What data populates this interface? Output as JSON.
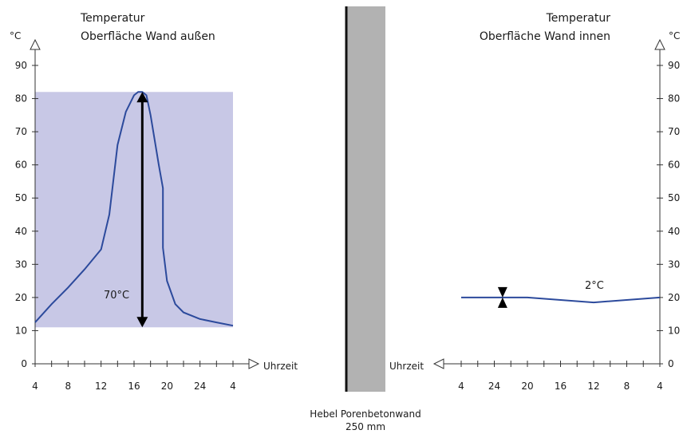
{
  "colors": {
    "range_fill": "#c8c8e6",
    "curve": "#2c4a9c",
    "axis": "#333333",
    "wall": "#b2b2b2",
    "wall_edge": "#111111",
    "marker": "#000000"
  },
  "wall": {
    "label_line1": "Hebel Porenbetonwand",
    "label_line2": "250 mm"
  },
  "chart_data": [
    {
      "type": "line",
      "title_line1": "Temperatur",
      "title_line2": "Oberfläche Wand außen",
      "y_unit": "°C",
      "xlabel": "Uhrzeit",
      "ylim": [
        0,
        90
      ],
      "yticks": [
        0,
        10,
        20,
        30,
        40,
        50,
        60,
        70,
        80,
        90
      ],
      "xtick_labels": [
        "4",
        "8",
        "12",
        "16",
        "20",
        "24",
        "4"
      ],
      "x_range_hours": [
        4,
        28
      ],
      "series": [
        {
          "x": [
            4,
            6,
            8,
            10,
            12,
            13,
            14,
            15,
            16,
            16.5,
            17,
            17.5,
            18,
            19,
            19.5,
            19.5,
            20,
            21,
            22,
            24,
            26,
            28
          ],
          "y": [
            12.5,
            18,
            23,
            28.5,
            34.5,
            45,
            66,
            76,
            81,
            82,
            82,
            81,
            75,
            60,
            53,
            35,
            25,
            18,
            15.5,
            13.5,
            12.5,
            11.5
          ]
        }
      ],
      "shaded_band": {
        "y_min": 11,
        "y_max": 82
      },
      "range_arrow": {
        "x": 17,
        "y_from": 11,
        "y_to": 82,
        "label": "70°C"
      }
    },
    {
      "type": "line",
      "title_line1": "Temperatur",
      "title_line2": "Oberfläche Wand innen",
      "y_unit": "°C",
      "xlabel": "Uhrzeit",
      "ylim": [
        0,
        90
      ],
      "yticks": [
        0,
        10,
        20,
        30,
        40,
        50,
        60,
        70,
        80,
        90
      ],
      "xtick_labels": [
        "4",
        "8",
        "12",
        "16",
        "20",
        "24",
        "4"
      ],
      "x_range_hours": [
        4,
        28
      ],
      "series": [
        {
          "x": [
            4,
            12,
            20,
            22,
            24,
            28
          ],
          "y": [
            20,
            18.5,
            20,
            20,
            20,
            20
          ]
        }
      ],
      "range_marker": {
        "x": 23,
        "y_from": 18.5,
        "y_to": 20.5,
        "label": "2°C"
      }
    }
  ]
}
